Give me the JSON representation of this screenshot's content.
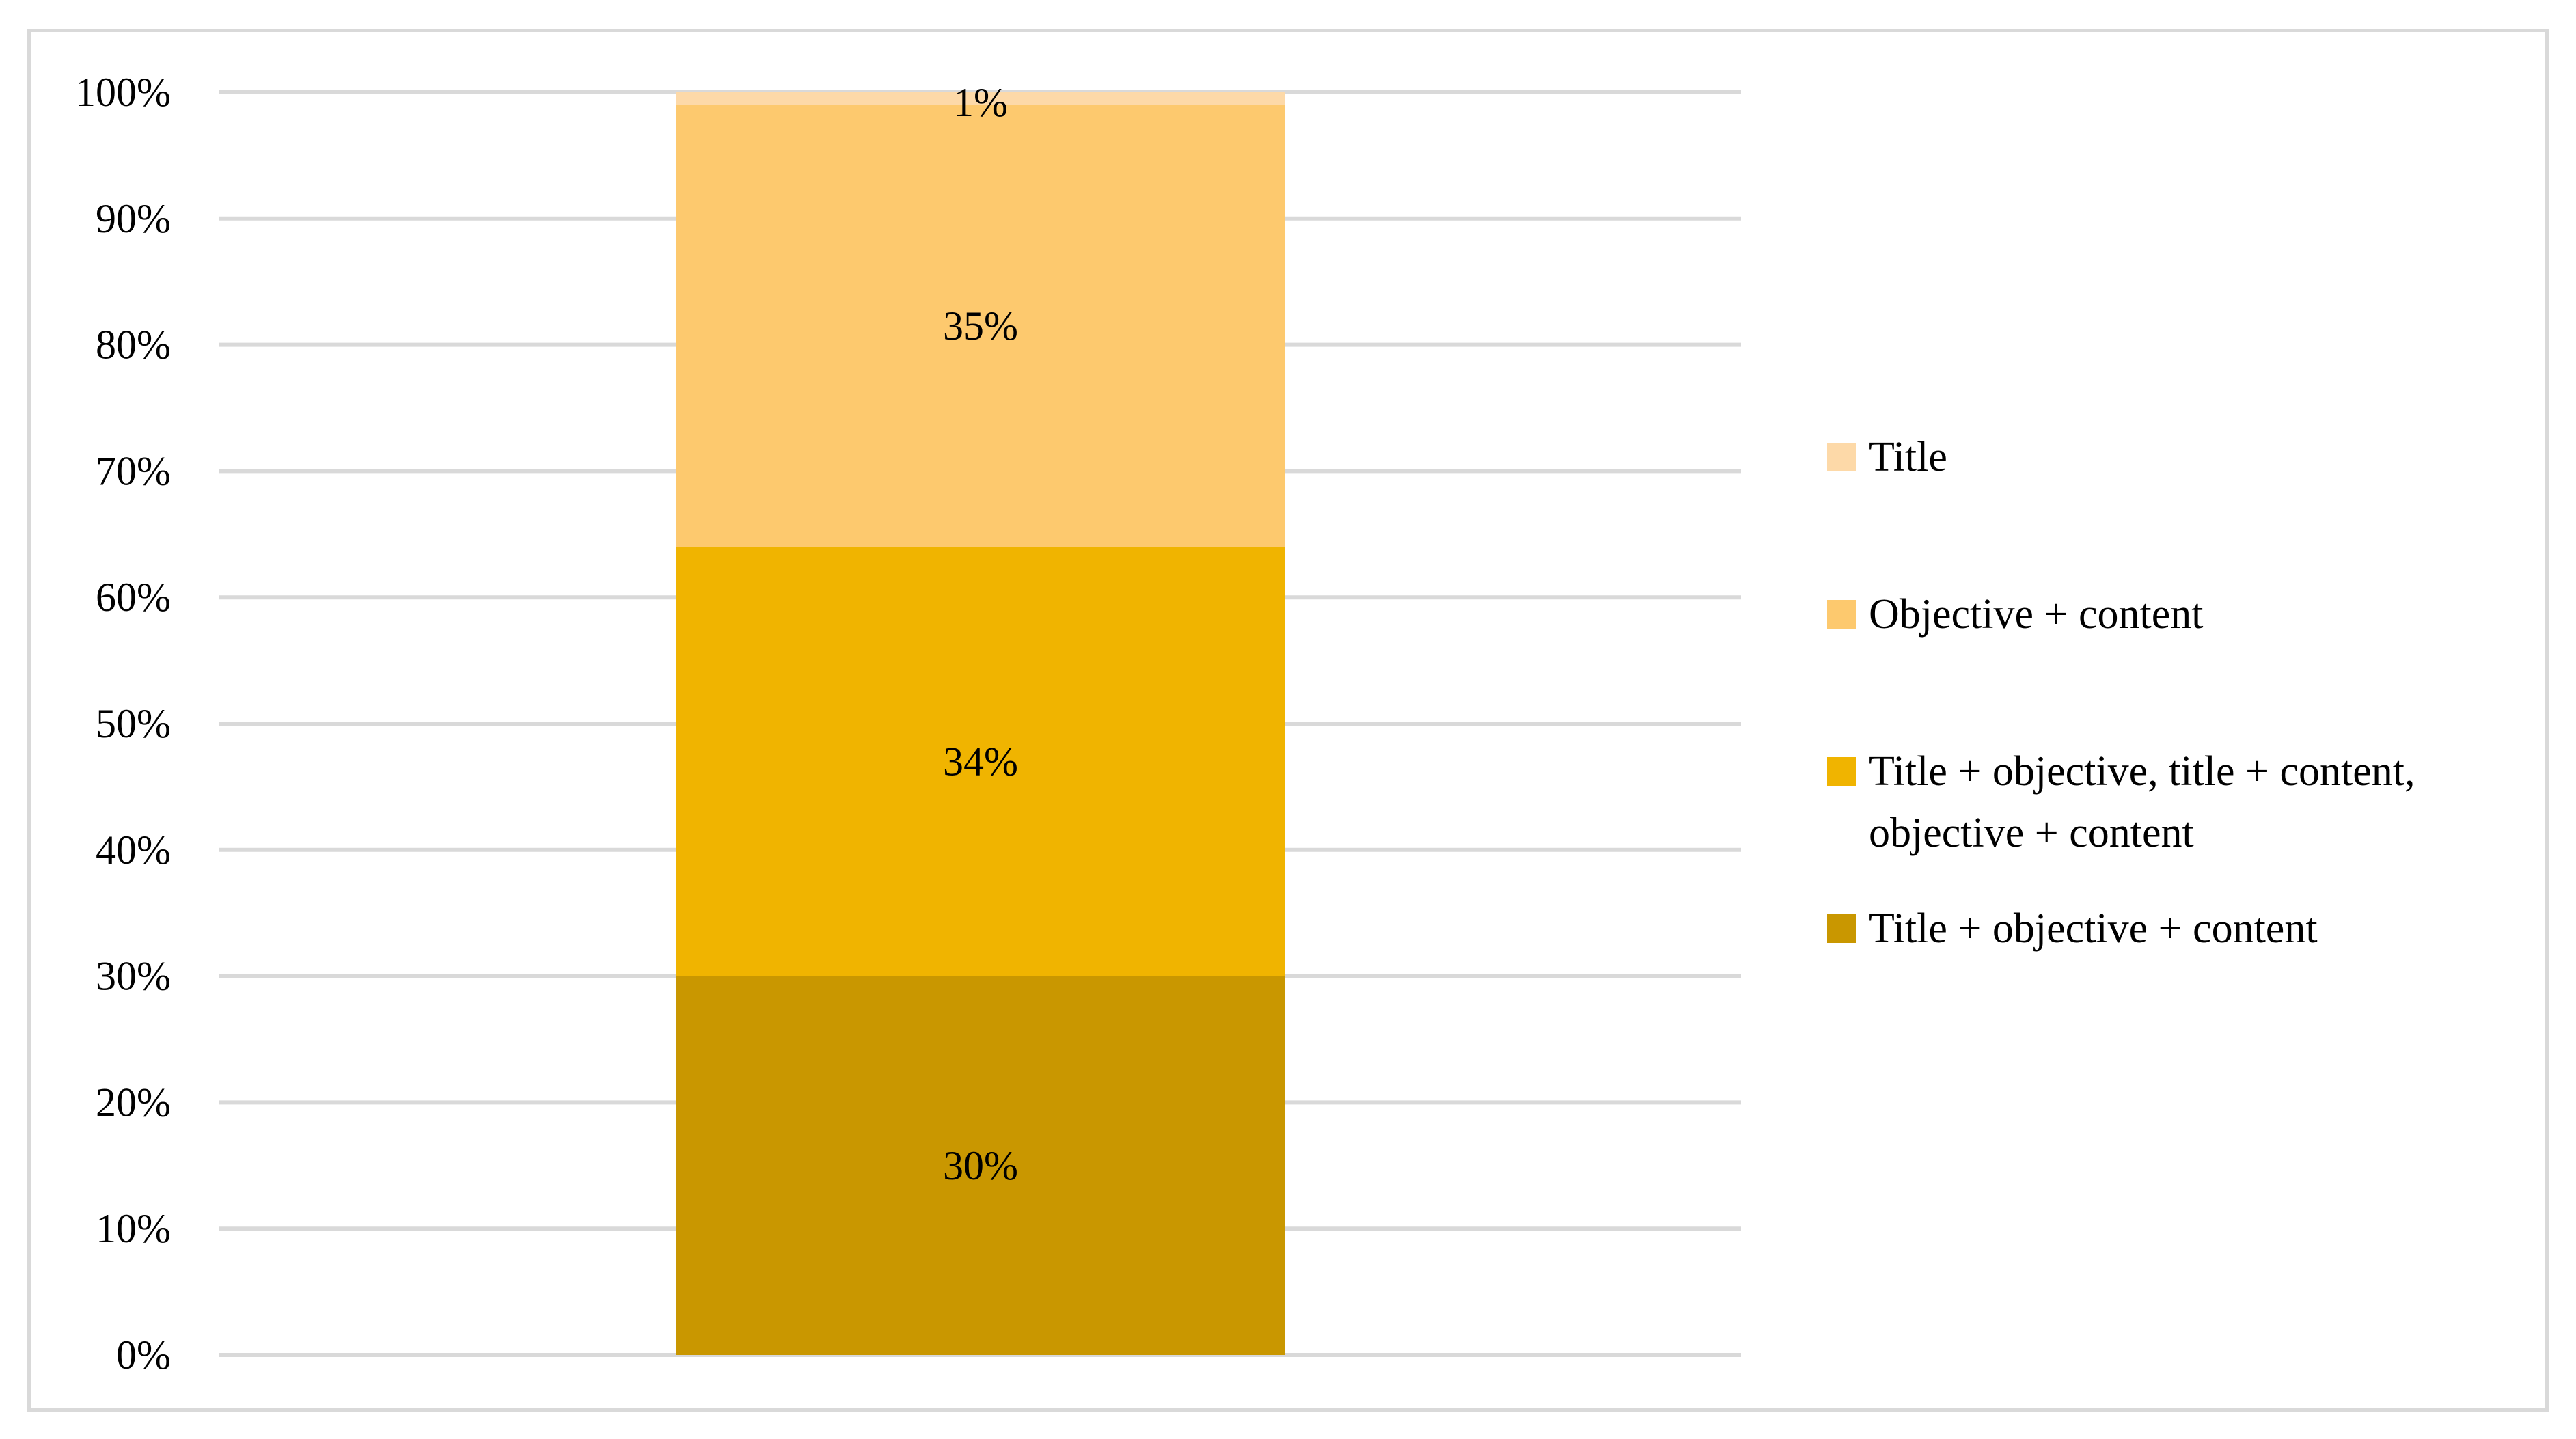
{
  "chart_data": {
    "type": "bar",
    "stacked": true,
    "categories": [
      ""
    ],
    "series": [
      {
        "name": "Title + objective + content",
        "values": [
          30
        ],
        "label": "30%",
        "color": "#c99700"
      },
      {
        "name": "Title + objective, title + content, objective + content",
        "values": [
          34
        ],
        "label": "34%",
        "color": "#f0b400"
      },
      {
        "name": "Objective + content",
        "values": [
          35
        ],
        "label": "35%",
        "color": "#fdc96e"
      },
      {
        "name": "Title",
        "values": [
          1
        ],
        "label": "1%",
        "color": "#fdd9a8"
      }
    ],
    "yaxis": {
      "ticks": [
        "0%",
        "10%",
        "20%",
        "30%",
        "40%",
        "50%",
        "60%",
        "70%",
        "80%",
        "90%",
        "100%"
      ],
      "ylim": [
        0,
        100
      ]
    },
    "legend": {
      "placement": "right",
      "order": [
        "Title",
        "Objective + content",
        "Title + objective, title + content, objective + content",
        "Title + objective + content"
      ],
      "lines": {
        "Title": [
          "Title"
        ],
        "Objective + content": [
          "Objective + content"
        ],
        "Title + objective, title + content, objective + content": [
          "Title + objective, title + content,",
          "objective + content"
        ],
        "Title + objective + content": [
          "Title + objective + content"
        ]
      }
    },
    "grid": true,
    "gridColor": "#d9d9d9"
  }
}
